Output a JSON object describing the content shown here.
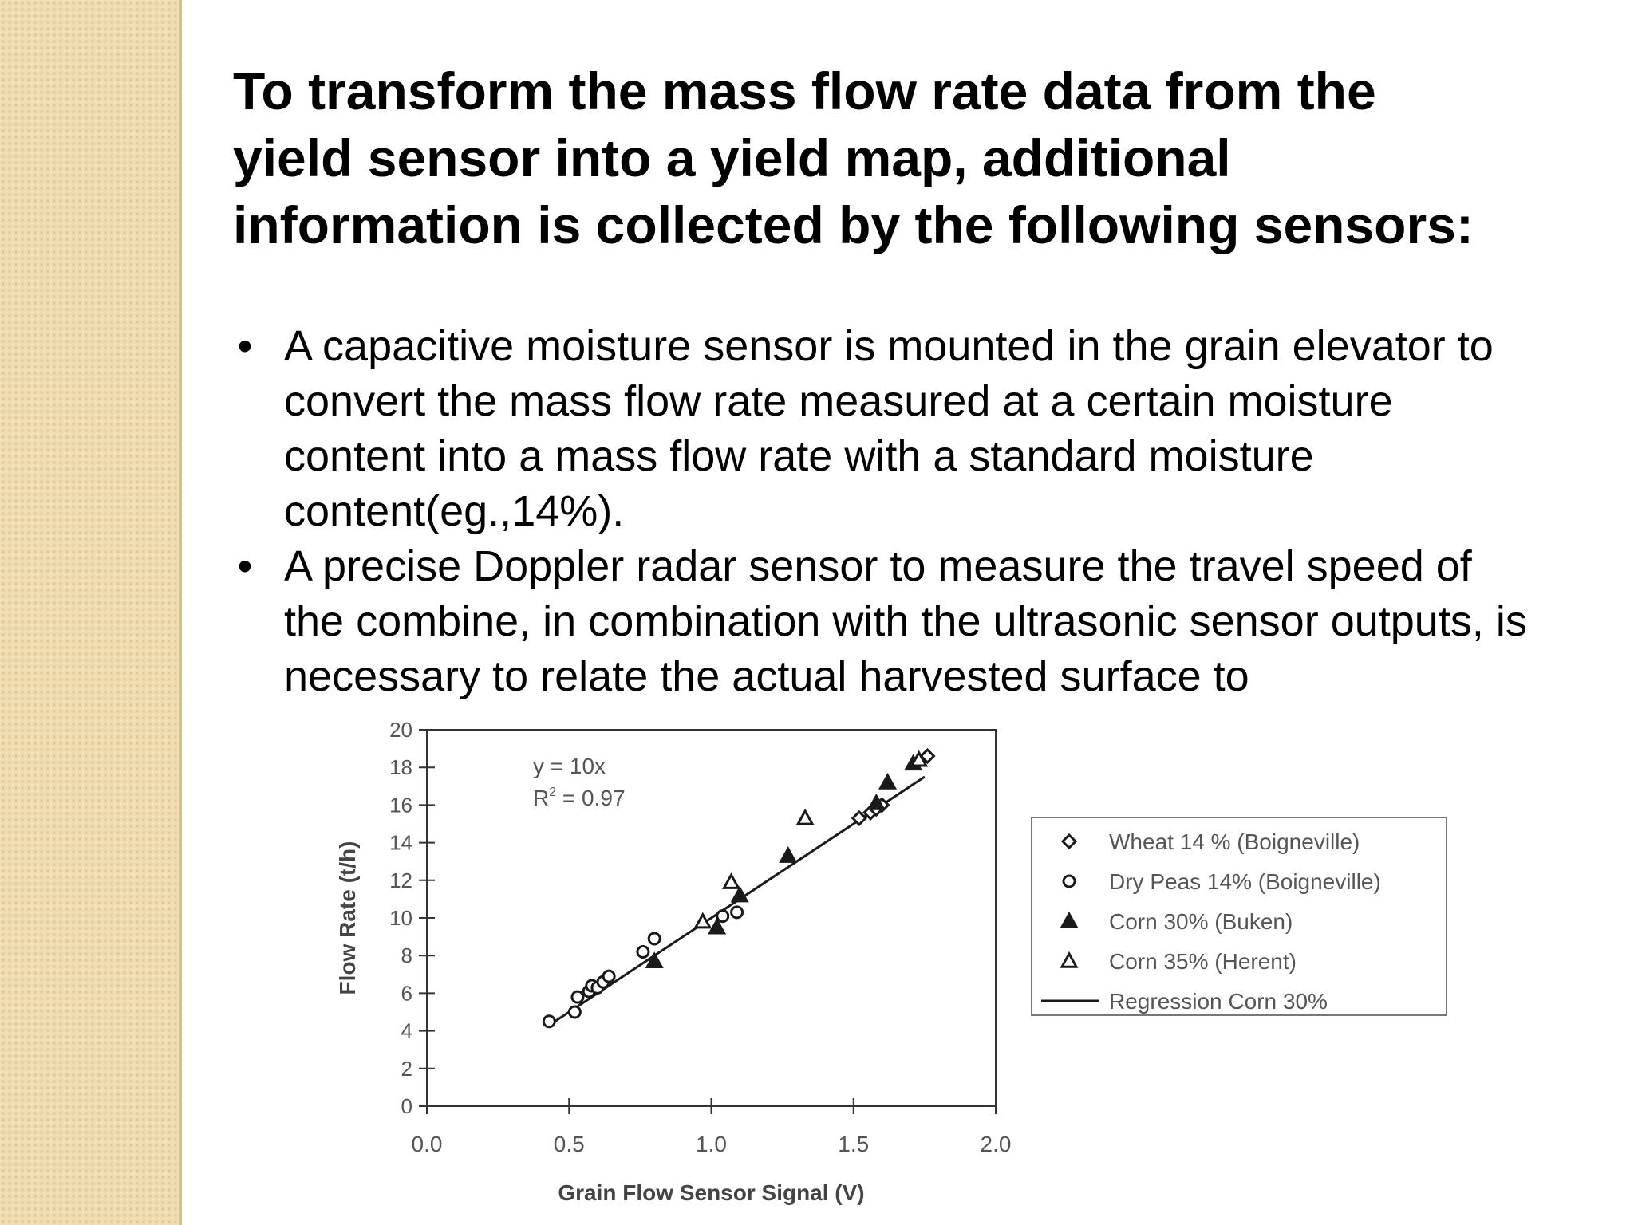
{
  "slide": {
    "heading": "To transform the mass flow rate data from the yield sensor into a yield map, additional information is collected by the following sensors:",
    "bullets": [
      "A capacitive moisture sensor is mounted in the grain elevator to convert the mass flow rate measured at a certain moisture content   into a mass flow rate with a standard moisture content(eg.,14%).",
      "A precise Doppler radar sensor to measure the travel speed of the combine, in combination with the ultrasonic sensor outputs, is necessary to relate the actual harvested surface to"
    ],
    "bullet_glyph": "•"
  },
  "chart_data": {
    "type": "scatter",
    "title": "",
    "xlabel": "Grain Flow Sensor Signal (V)",
    "ylabel": "Flow Rate (t/h)",
    "xlim": [
      0,
      2
    ],
    "ylim": [
      0,
      20
    ],
    "x_ticks": [
      "0.0",
      "0.5",
      "1.0",
      "1.5",
      "2.0"
    ],
    "y_ticks": [
      "0",
      "2",
      "4",
      "6",
      "8",
      "10",
      "12",
      "14",
      "16",
      "18",
      "20"
    ],
    "annotation": {
      "equation": "y = 10x",
      "r2_label": "R",
      "r2_sup": "2",
      "r2_value": " = 0.97"
    },
    "legend_position": "right",
    "colors": {
      "marker": "#1a1a1a",
      "axis": "#333333",
      "text": "#555555"
    },
    "series": [
      {
        "name": "Wheat 14 % (Boigneville)",
        "marker": "diamond-open",
        "points": [
          [
            1.52,
            15.3
          ],
          [
            1.56,
            15.6
          ],
          [
            1.58,
            15.8
          ],
          [
            1.6,
            16.0
          ],
          [
            1.76,
            18.6
          ]
        ]
      },
      {
        "name": "Dry Peas 14% (Boigneville)",
        "marker": "circle-open",
        "points": [
          [
            0.43,
            4.5
          ],
          [
            0.52,
            5.0
          ],
          [
            0.53,
            5.8
          ],
          [
            0.57,
            6.1
          ],
          [
            0.58,
            6.4
          ],
          [
            0.6,
            6.3
          ],
          [
            0.62,
            6.6
          ],
          [
            0.64,
            6.9
          ],
          [
            0.76,
            8.2
          ],
          [
            0.8,
            8.9
          ],
          [
            1.04,
            10.1
          ],
          [
            1.09,
            10.3
          ]
        ]
      },
      {
        "name": "Corn 30% (Buken)",
        "marker": "triangle-filled",
        "points": [
          [
            0.8,
            7.7
          ],
          [
            1.02,
            9.5
          ],
          [
            1.1,
            11.2
          ],
          [
            1.27,
            13.3
          ],
          [
            1.58,
            16.1
          ],
          [
            1.62,
            17.2
          ],
          [
            1.71,
            18.2
          ]
        ]
      },
      {
        "name": "Corn 35% (Herent)",
        "marker": "triangle-open",
        "points": [
          [
            0.97,
            9.8
          ],
          [
            1.07,
            11.9
          ],
          [
            1.33,
            15.3
          ],
          [
            1.73,
            18.4
          ]
        ]
      },
      {
        "name": "Regression Corn 30%",
        "marker": "line",
        "points": [
          [
            0.45,
            4.5
          ],
          [
            1.75,
            17.5
          ]
        ]
      }
    ]
  }
}
